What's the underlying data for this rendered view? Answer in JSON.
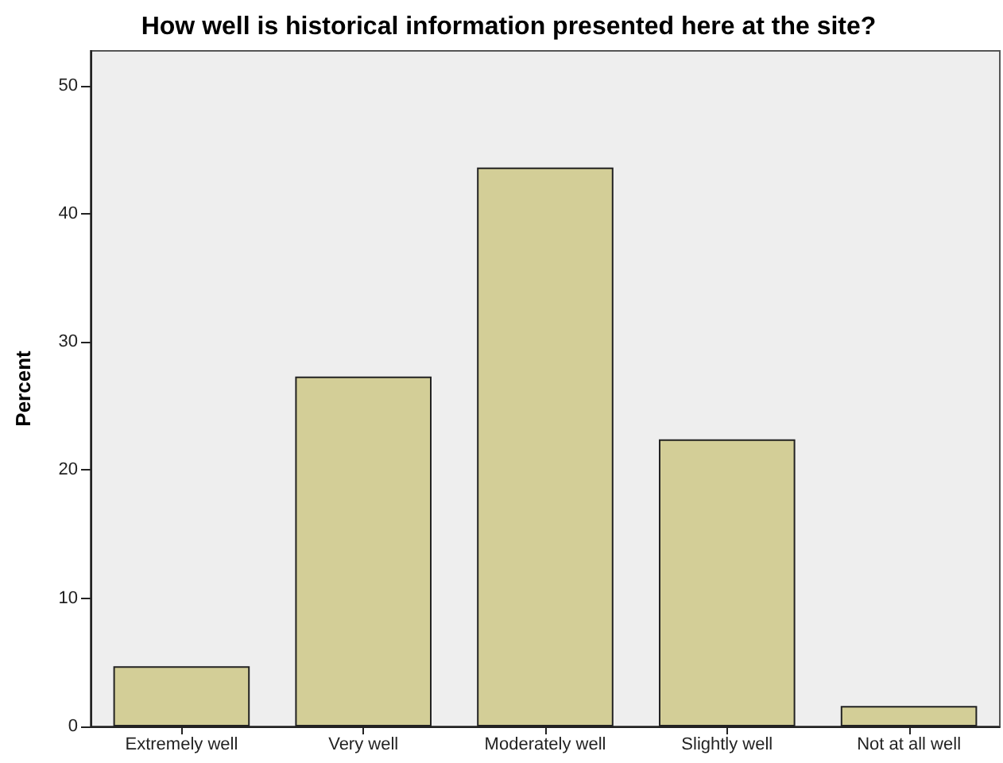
{
  "chart_data": {
    "type": "bar",
    "title": "How well is historical information presented here at the site?",
    "ylabel": "Percent",
    "categories": [
      "Extremely well",
      "Very well",
      "Moderately well",
      "Slightly well",
      "Not at all well"
    ],
    "values": [
      4.7,
      27.3,
      43.6,
      22.4,
      1.6
    ],
    "color": "#d3ce97",
    "ylim": [
      0,
      52.7
    ],
    "yticks": [
      0,
      10,
      20,
      30,
      40,
      50
    ],
    "grid": false
  }
}
